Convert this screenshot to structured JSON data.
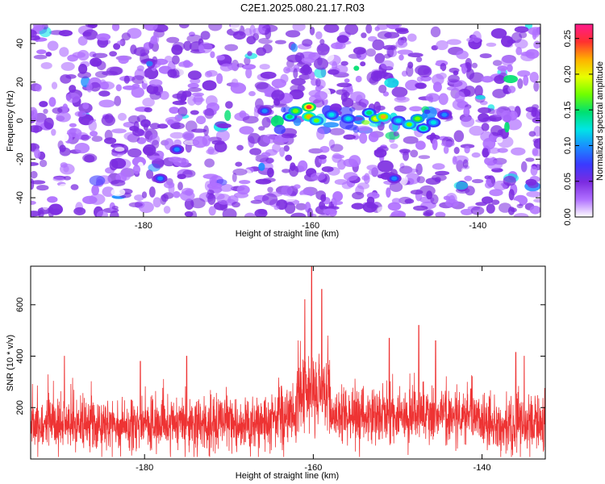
{
  "page": {
    "title": "C2E1.2025.080.21.17.R03"
  },
  "chart_data": [
    {
      "type": "heatmap",
      "xlabel": "Height of straight line (km)",
      "ylabel": "Frequency (Hz)",
      "xlim": [
        -193.5,
        -132.5
      ],
      "ylim": [
        -50,
        50
      ],
      "xticks": [
        -180,
        -160,
        -140
      ],
      "yticks": [
        40,
        20,
        0,
        -20,
        -40
      ],
      "colorbar": {
        "label": "Normalized spectral amplitude",
        "range": [
          0,
          0.27
        ],
        "ticks": [
          "0.00",
          "0.05",
          "0.10",
          "0.15",
          "0.20",
          "0.25"
        ],
        "colors": [
          "#ffffff",
          "#b070ff",
          "#7b2be0",
          "#3a3aff",
          "#1a8cff",
          "#00e5e5",
          "#00e070",
          "#70ff00",
          "#e8ff00",
          "#ffb000",
          "#ff3030",
          "#ff1a8c"
        ]
      },
      "features": {
        "background_level": 0.04,
        "band_center_hz": 0,
        "band_x_range": [
          -164,
          -145
        ],
        "peak_value": 0.27,
        "peak_x_km": -160
      }
    },
    {
      "type": "line",
      "xlabel": "Height of straight line (km)",
      "ylabel": "SNR (10 * v/v)",
      "xlim": [
        -193.5,
        -132.5
      ],
      "ylim": [
        0,
        750
      ],
      "xticks": [
        -180,
        -160,
        -140
      ],
      "yticks": [
        600,
        400,
        200
      ],
      "color": "#ee3333",
      "series_summary": {
        "baseline_mean": 130,
        "baseline_spread": 60,
        "peak_value": 750,
        "peak_x_km": -160
      },
      "notable_peaks": [
        {
          "x": -189.5,
          "y": 400
        },
        {
          "x": -180.5,
          "y": 380
        },
        {
          "x": -175.0,
          "y": 400
        },
        {
          "x": -161.0,
          "y": 620
        },
        {
          "x": -160.2,
          "y": 750
        },
        {
          "x": -159.0,
          "y": 660
        },
        {
          "x": -151.0,
          "y": 470
        },
        {
          "x": -147.5,
          "y": 520
        },
        {
          "x": -145.5,
          "y": 460
        },
        {
          "x": -136.0,
          "y": 415
        },
        {
          "x": -135.0,
          "y": 400
        }
      ]
    }
  ]
}
